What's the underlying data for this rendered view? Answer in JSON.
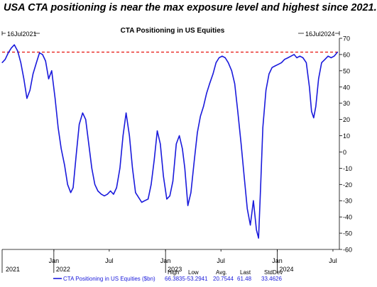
{
  "headline": "USA CTA positioning is near the max exposure level and highest since 2021.",
  "chart_data": {
    "type": "line",
    "title": "CTA Positioning in US Equities",
    "start_date_label": "16Jul2021",
    "end_date_label": "16Jul2024",
    "ylim": [
      -60,
      70
    ],
    "y_ticks": [
      70,
      60,
      50,
      40,
      30,
      20,
      10,
      0,
      -10,
      -20,
      -30,
      -40,
      -50,
      -60
    ],
    "x_month_labels": [
      "Jan",
      "Jul",
      "Jan",
      "Jul",
      "Jan",
      "Jul"
    ],
    "x_year_labels": [
      "2021",
      "2022",
      "2023",
      "2024"
    ],
    "reference_line": {
      "value": 61.48,
      "style": "dashed",
      "color": "#e8231e"
    },
    "series": [
      {
        "name": "CTA Positioning in US Equities ($bn)",
        "color": "#1a1adc",
        "points": [
          [
            "2021-07-16",
            55
          ],
          [
            "2021-07-26",
            57
          ],
          [
            "2021-08-05",
            61
          ],
          [
            "2021-08-15",
            64
          ],
          [
            "2021-08-25",
            66
          ],
          [
            "2021-09-05",
            62
          ],
          [
            "2021-09-15",
            55
          ],
          [
            "2021-09-25",
            45
          ],
          [
            "2021-10-05",
            33
          ],
          [
            "2021-10-15",
            38
          ],
          [
            "2021-10-25",
            48
          ],
          [
            "2021-11-05",
            55
          ],
          [
            "2021-11-15",
            61
          ],
          [
            "2021-11-25",
            60
          ],
          [
            "2021-12-05",
            56
          ],
          [
            "2021-12-15",
            45
          ],
          [
            "2021-12-25",
            50
          ],
          [
            "2022-01-05",
            33
          ],
          [
            "2022-01-15",
            15
          ],
          [
            "2022-01-25",
            2
          ],
          [
            "2022-02-05",
            -8
          ],
          [
            "2022-02-15",
            -20
          ],
          [
            "2022-02-25",
            -25
          ],
          [
            "2022-03-05",
            -22
          ],
          [
            "2022-03-15",
            -2
          ],
          [
            "2022-03-25",
            17
          ],
          [
            "2022-04-05",
            24
          ],
          [
            "2022-04-15",
            20
          ],
          [
            "2022-04-25",
            5
          ],
          [
            "2022-05-05",
            -10
          ],
          [
            "2022-05-15",
            -20
          ],
          [
            "2022-05-25",
            -24
          ],
          [
            "2022-06-05",
            -26
          ],
          [
            "2022-06-15",
            -27
          ],
          [
            "2022-06-25",
            -26
          ],
          [
            "2022-07-05",
            -24
          ],
          [
            "2022-07-15",
            -26
          ],
          [
            "2022-07-25",
            -22
          ],
          [
            "2022-08-05",
            -10
          ],
          [
            "2022-08-15",
            10
          ],
          [
            "2022-08-25",
            24
          ],
          [
            "2022-09-05",
            10
          ],
          [
            "2022-09-15",
            -10
          ],
          [
            "2022-09-25",
            -25
          ],
          [
            "2022-10-05",
            -28
          ],
          [
            "2022-10-15",
            -31
          ],
          [
            "2022-10-25",
            -30
          ],
          [
            "2022-11-05",
            -29
          ],
          [
            "2022-11-15",
            -20
          ],
          [
            "2022-11-25",
            -5
          ],
          [
            "2022-12-05",
            13
          ],
          [
            "2022-12-15",
            5
          ],
          [
            "2022-12-25",
            -15
          ],
          [
            "2023-01-05",
            -29
          ],
          [
            "2023-01-15",
            -27
          ],
          [
            "2023-01-25",
            -18
          ],
          [
            "2023-02-05",
            5
          ],
          [
            "2023-02-15",
            10
          ],
          [
            "2023-02-25",
            2
          ],
          [
            "2023-03-05",
            -10
          ],
          [
            "2023-03-15",
            -33
          ],
          [
            "2023-03-25",
            -25
          ],
          [
            "2023-04-05",
            -5
          ],
          [
            "2023-04-15",
            12
          ],
          [
            "2023-04-25",
            22
          ],
          [
            "2023-05-05",
            28
          ],
          [
            "2023-05-15",
            36
          ],
          [
            "2023-05-25",
            42
          ],
          [
            "2023-06-05",
            48
          ],
          [
            "2023-06-15",
            55
          ],
          [
            "2023-06-25",
            58
          ],
          [
            "2023-07-05",
            59
          ],
          [
            "2023-07-15",
            58
          ],
          [
            "2023-07-25",
            55
          ],
          [
            "2023-08-05",
            50
          ],
          [
            "2023-08-15",
            42
          ],
          [
            "2023-08-25",
            25
          ],
          [
            "2023-09-05",
            5
          ],
          [
            "2023-09-15",
            -15
          ],
          [
            "2023-09-25",
            -35
          ],
          [
            "2023-10-05",
            -45
          ],
          [
            "2023-10-15",
            -30
          ],
          [
            "2023-10-25",
            -48
          ],
          [
            "2023-11-01",
            -53
          ],
          [
            "2023-11-08",
            -20
          ],
          [
            "2023-11-15",
            15
          ],
          [
            "2023-11-25",
            38
          ],
          [
            "2023-12-05",
            48
          ],
          [
            "2023-12-15",
            52
          ],
          [
            "2023-12-25",
            53
          ],
          [
            "2024-01-05",
            54
          ],
          [
            "2024-01-15",
            55
          ],
          [
            "2024-01-25",
            57
          ],
          [
            "2024-02-05",
            58
          ],
          [
            "2024-02-15",
            59
          ],
          [
            "2024-02-25",
            60
          ],
          [
            "2024-03-05",
            58
          ],
          [
            "2024-03-15",
            59
          ],
          [
            "2024-03-25",
            58
          ],
          [
            "2024-04-05",
            55
          ],
          [
            "2024-04-15",
            40
          ],
          [
            "2024-04-22",
            25
          ],
          [
            "2024-04-29",
            21
          ],
          [
            "2024-05-06",
            28
          ],
          [
            "2024-05-15",
            45
          ],
          [
            "2024-05-25",
            55
          ],
          [
            "2024-06-05",
            57
          ],
          [
            "2024-06-15",
            59
          ],
          [
            "2024-06-25",
            58
          ],
          [
            "2024-07-05",
            59
          ],
          [
            "2024-07-16",
            61.48
          ]
        ]
      }
    ],
    "stats": [
      {
        "label": "High",
        "value": "66.3835"
      },
      {
        "label": "Low",
        "value": "-53.2941"
      },
      {
        "label": "Avg.",
        "value": "20.7544"
      },
      {
        "label": "Last",
        "value": "61.48"
      },
      {
        "label": "StdDev",
        "value": "33.4626"
      }
    ]
  }
}
